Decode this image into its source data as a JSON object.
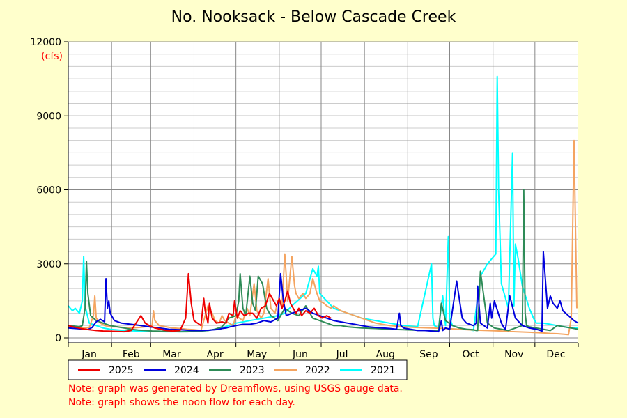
{
  "chart_data": {
    "type": "line",
    "title": "No. Nooksack - Below Cascade Creek",
    "ylabel": "(cfs)",
    "xlabel": "",
    "ylim": [
      0,
      12000
    ],
    "xlim": [
      0,
      365
    ],
    "grid": true,
    "legend_position": "bottom-left",
    "y_ticks": [
      {
        "value": 0,
        "label": "0"
      },
      {
        "value": 3000,
        "label": "3000"
      },
      {
        "value": 6000,
        "label": "6000"
      },
      {
        "value": 9000,
        "label": "9000"
      },
      {
        "value": 12000,
        "label": "12000"
      }
    ],
    "months": [
      {
        "name": "Jan",
        "start": 0,
        "mid": 15
      },
      {
        "name": "Feb",
        "start": 31,
        "mid": 45
      },
      {
        "name": "Mar",
        "start": 59,
        "mid": 74
      },
      {
        "name": "Apr",
        "start": 90,
        "mid": 105
      },
      {
        "name": "May",
        "start": 120,
        "mid": 135
      },
      {
        "name": "Jun",
        "start": 151,
        "mid": 166
      },
      {
        "name": "Jul",
        "start": 181,
        "mid": 196
      },
      {
        "name": "Aug",
        "start": 212,
        "mid": 227
      },
      {
        "name": "Sep",
        "start": 243,
        "mid": 258
      },
      {
        "name": "Oct",
        "start": 273,
        "mid": 288
      },
      {
        "name": "Nov",
        "start": 304,
        "mid": 319
      },
      {
        "name": "Dec",
        "start": 334,
        "mid": 349
      }
    ],
    "series": [
      {
        "name": "2025",
        "color": "#ee0000",
        "x": [
          0,
          5,
          10,
          15,
          20,
          25,
          30,
          35,
          40,
          45,
          52,
          55,
          58,
          62,
          66,
          70,
          75,
          80,
          84,
          85,
          86,
          88,
          90,
          95,
          97,
          98,
          100,
          101,
          103,
          106,
          110,
          113,
          115,
          118,
          119,
          121,
          123,
          126,
          129,
          132,
          135,
          138,
          141,
          144,
          147,
          149,
          151,
          153,
          155,
          157,
          159,
          161,
          163,
          165,
          167,
          170,
          173,
          176,
          179,
          182,
          185,
          188
        ],
        "y": [
          500,
          430,
          370,
          330,
          300,
          280,
          270,
          260,
          250,
          300,
          900,
          600,
          500,
          400,
          350,
          300,
          280,
          300,
          800,
          1700,
          2600,
          1400,
          700,
          500,
          1600,
          1100,
          600,
          1400,
          800,
          600,
          650,
          600,
          1000,
          900,
          1500,
          800,
          1100,
          900,
          1000,
          1000,
          800,
          1200,
          1300,
          1800,
          1500,
          1300,
          1600,
          1200,
          1500,
          1900,
          1400,
          1200,
          1000,
          1200,
          900,
          1100,
          1000,
          1200,
          900,
          800,
          900,
          800
        ]
      },
      {
        "name": "2024",
        "color": "#0000dd",
        "x": [
          0,
          5,
          10,
          14,
          17,
          20,
          23,
          26,
          27,
          28,
          29,
          30,
          33,
          38,
          45,
          52,
          58,
          65,
          72,
          80,
          88,
          95,
          100,
          105,
          108,
          110,
          113,
          116,
          120,
          125,
          130,
          135,
          140,
          145,
          150,
          152,
          154,
          156,
          160,
          165,
          170,
          175,
          180,
          185,
          190,
          195,
          200,
          205,
          210,
          215,
          220,
          225,
          230,
          235,
          237,
          238,
          240,
          245,
          250,
          255,
          260,
          265,
          267,
          268,
          270,
          273,
          278,
          282,
          285,
          290,
          292,
          293,
          295,
          300,
          302,
          303,
          305,
          310,
          312,
          313,
          316,
          320,
          325,
          330,
          335,
          338,
          339,
          340,
          343,
          345,
          347,
          350,
          352,
          354,
          356,
          358,
          360,
          362,
          365
        ],
        "y": [
          400,
          380,
          360,
          340,
          420,
          650,
          750,
          650,
          2400,
          1200,
          1500,
          1000,
          700,
          600,
          550,
          500,
          450,
          400,
          350,
          330,
          300,
          300,
          310,
          330,
          350,
          380,
          400,
          450,
          500,
          550,
          550,
          600,
          700,
          650,
          800,
          2600,
          1500,
          900,
          1000,
          1100,
          1200,
          1000,
          900,
          800,
          700,
          650,
          600,
          550,
          500,
          450,
          420,
          400,
          380,
          350,
          1000,
          500,
          400,
          350,
          300,
          300,
          280,
          250,
          700,
          300,
          400,
          350,
          2300,
          800,
          600,
          500,
          600,
          2100,
          600,
          400,
          1400,
          800,
          1500,
          600,
          400,
          350,
          1700,
          800,
          500,
          400,
          350,
          300,
          250,
          3500,
          1200,
          1700,
          1400,
          1200,
          1500,
          1100,
          1000,
          900,
          800,
          700,
          600
        ]
      },
      {
        "name": "2023",
        "color": "#2e8b57",
        "x": [
          0,
          4,
          8,
          10,
          12,
          13,
          14,
          16,
          20,
          25,
          30,
          35,
          40,
          45,
          50,
          55,
          60,
          65,
          70,
          75,
          80,
          85,
          90,
          95,
          100,
          105,
          110,
          115,
          120,
          122,
          123,
          125,
          127,
          130,
          132,
          134,
          136,
          139,
          142,
          145,
          148,
          150,
          152,
          155,
          160,
          165,
          170,
          175,
          180,
          185,
          190,
          195,
          200,
          210,
          220,
          230,
          240,
          250,
          260,
          265,
          267,
          270,
          275,
          280,
          285,
          290,
          292,
          293,
          295,
          300,
          305,
          310,
          315,
          320,
          325,
          326,
          327,
          328,
          330,
          335,
          340,
          345,
          350,
          355,
          360,
          365
        ],
        "y": [
          500,
          480,
          450,
          500,
          1200,
          3100,
          1800,
          900,
          700,
          600,
          500,
          450,
          400,
          350,
          320,
          300,
          280,
          270,
          260,
          260,
          250,
          250,
          260,
          280,
          300,
          350,
          450,
          800,
          900,
          1500,
          2600,
          1200,
          900,
          2500,
          1400,
          1100,
          2500,
          2200,
          1200,
          900,
          800,
          700,
          900,
          1200,
          1000,
          900,
          1300,
          800,
          700,
          600,
          500,
          500,
          450,
          400,
          380,
          350,
          330,
          310,
          300,
          290,
          1400,
          700,
          500,
          400,
          350,
          330,
          300,
          300,
          2700,
          600,
          400,
          350,
          300,
          400,
          500,
          6000,
          1000,
          500,
          450,
          400,
          350,
          300,
          500,
          450,
          400,
          350
        ]
      },
      {
        "name": "2022",
        "color": "#f4a460",
        "x": [
          0,
          5,
          10,
          15,
          18,
          19,
          20,
          23,
          26,
          30,
          35,
          40,
          45,
          50,
          55,
          60,
          61,
          62,
          65,
          70,
          75,
          80,
          85,
          90,
          95,
          100,
          103,
          105,
          108,
          110,
          112,
          115,
          118,
          120,
          125,
          128,
          130,
          133,
          135,
          138,
          140,
          143,
          145,
          148,
          150,
          153,
          155,
          156,
          157,
          160,
          162,
          163,
          165,
          168,
          170,
          173,
          175,
          178,
          180,
          183,
          185,
          188,
          190,
          195,
          200,
          210,
          220,
          230,
          240,
          250,
          260,
          270,
          280,
          290,
          300,
          310,
          320,
          330,
          340,
          345,
          350,
          355,
          358,
          360,
          362,
          364
        ],
        "y": [
          450,
          420,
          400,
          420,
          900,
          1700,
          800,
          600,
          500,
          450,
          450,
          420,
          400,
          420,
          450,
          500,
          1100,
          700,
          500,
          450,
          400,
          380,
          350,
          330,
          300,
          1300,
          1000,
          700,
          600,
          900,
          700,
          600,
          500,
          900,
          700,
          1200,
          900,
          2200,
          1100,
          800,
          1000,
          2400,
          1200,
          1000,
          1500,
          1300,
          3400,
          2500,
          1500,
          3300,
          2100,
          1800,
          1600,
          1800,
          1600,
          1800,
          2400,
          1800,
          1500,
          1400,
          1300,
          1200,
          1300,
          1100,
          1000,
          800,
          600,
          500,
          450,
          420,
          400,
          380,
          350,
          320,
          300,
          280,
          250,
          230,
          200,
          180,
          170,
          150,
          130,
          800,
          8000,
          1200
        ]
      },
      {
        "name": "2021",
        "color": "#00ffff",
        "x": [
          0,
          3,
          5,
          8,
          10,
          11,
          12,
          15,
          20,
          25,
          30,
          40,
          50,
          60,
          70,
          80,
          90,
          100,
          110,
          120,
          130,
          140,
          150,
          155,
          160,
          170,
          175,
          178,
          179,
          180,
          185,
          190,
          200,
          210,
          220,
          230,
          240,
          250,
          260,
          261,
          262,
          265,
          268,
          270,
          272,
          273,
          275,
          280,
          285,
          290,
          295,
          300,
          306,
          307,
          308,
          310,
          315,
          318,
          319,
          320,
          322,
          325,
          330,
          333,
          334,
          335,
          340,
          345,
          350,
          355,
          360,
          365
        ],
        "y": [
          1300,
          1100,
          1200,
          1000,
          1500,
          3300,
          1300,
          600,
          500,
          400,
          350,
          300,
          280,
          260,
          250,
          250,
          260,
          300,
          400,
          600,
          700,
          800,
          900,
          1000,
          1300,
          1800,
          2800,
          2500,
          2900,
          1800,
          1500,
          1200,
          1000,
          800,
          700,
          600,
          500,
          450,
          3000,
          800,
          500,
          400,
          1700,
          500,
          4100,
          800,
          500,
          400,
          350,
          300,
          2500,
          3000,
          3400,
          10600,
          6000,
          2200,
          1200,
          7500,
          1300,
          3800,
          3200,
          2100,
          1200,
          800,
          700,
          600,
          600,
          550,
          500,
          450,
          400,
          400
        ]
      }
    ]
  },
  "legend": {
    "items": [
      {
        "label": "2025",
        "color": "#ee0000"
      },
      {
        "label": "2024",
        "color": "#0000dd"
      },
      {
        "label": "2023",
        "color": "#2e8b57"
      },
      {
        "label": "2022",
        "color": "#f4a460"
      },
      {
        "label": "2021",
        "color": "#00ffff"
      }
    ]
  },
  "notes": {
    "line1": "Note: graph was generated by Dreamflows, using USGS gauge data.",
    "line2": "Note: graph shows the noon flow for each day."
  },
  "colors": {
    "background": "#ffffcc",
    "plot_background": "#ffffff",
    "grid": "#888888",
    "note_text": "#ff0000"
  }
}
